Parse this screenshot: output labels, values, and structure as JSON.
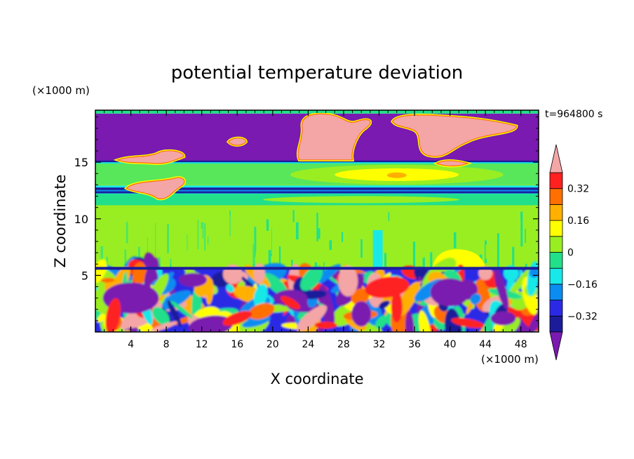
{
  "chart_data": {
    "type": "heatmap",
    "title": "potential temperature deviation",
    "xlabel": "X coordinate",
    "ylabel": "Z coordinate",
    "x_units": "(×1000 m)",
    "y_units": "(×1000 m)",
    "time_label": "t=964800 s",
    "xlim": [
      0,
      50
    ],
    "ylim": [
      0,
      19.6
    ],
    "x_ticks": [
      4,
      8,
      12,
      16,
      20,
      24,
      28,
      32,
      36,
      40,
      44,
      48
    ],
    "y_ticks": [
      5,
      10,
      15
    ],
    "colorbar": {
      "levels": [
        -0.4,
        -0.32,
        -0.24,
        -0.16,
        -0.08,
        0,
        0.08,
        0.16,
        0.24,
        0.32,
        0.4
      ],
      "tick_labels": [
        "0.32",
        "0.16",
        "0",
        "−0.16",
        "−0.32"
      ],
      "tick_values": [
        0.32,
        0.16,
        0,
        -0.16,
        -0.32
      ],
      "under_color": "#7a1ab0",
      "over_color": "#f4a6a6",
      "colors": [
        "#1c1c9a",
        "#2a2ae6",
        "#0b8cf0",
        "#19e8e8",
        "#22e08a",
        "#99ee22",
        "#ffff00",
        "#ffb000",
        "#ff7000",
        "#ff2020"
      ]
    },
    "layers": [
      {
        "z_range": [
          0,
          5.6
        ],
        "description_value": "mixed",
        "base_color": "#2a2ae6"
      },
      {
        "z_range": [
          5.6,
          12.2
        ],
        "value": 0.04,
        "color": "#99ee22"
      },
      {
        "z_range": [
          12.2,
          12.9
        ],
        "value": -0.32,
        "color": "#1c1c9a"
      },
      {
        "z_range": [
          12.9,
          15.0
        ],
        "value": 0.02,
        "color": "#99ee22"
      },
      {
        "z_range": [
          15.0,
          19.3
        ],
        "value": -0.45,
        "color": "#7a1ab0"
      },
      {
        "z_range": [
          19.3,
          19.6
        ],
        "value": -0.05,
        "color": "#22e08a"
      }
    ]
  }
}
